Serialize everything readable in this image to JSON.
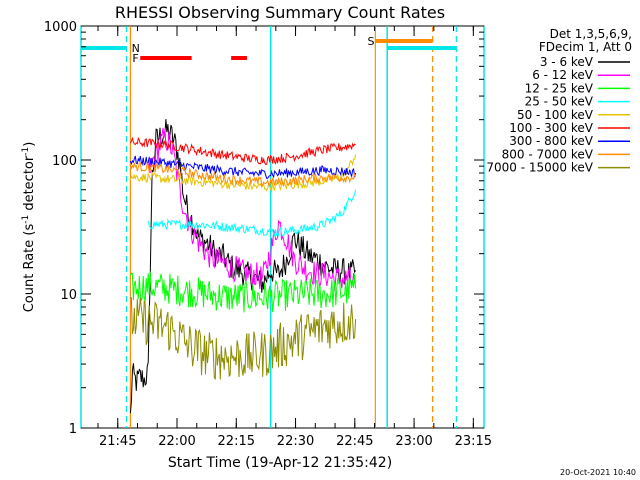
{
  "chart_data": {
    "type": "line",
    "title": "RHESSI Observing Summary Count Rates",
    "xlabel": "Start Time (19-Apr-12 21:35:42)",
    "ylabel_main": "Count Rate (s",
    "ylabel_sup1": "-1",
    "ylabel_mid": " detector",
    "ylabel_sup2": "-1",
    "ylabel_end": ")",
    "y_scale": "log",
    "ylim": [
      1,
      1000
    ],
    "y_ticks": [
      1,
      10,
      100,
      1000
    ],
    "y_tick_labels": [
      "1",
      "10",
      "100",
      "1000"
    ],
    "xlim_minutes": [
      0,
      102
    ],
    "x_ticks": [
      {
        "t": 9.3,
        "label": "21:45"
      },
      {
        "t": 24.3,
        "label": "22:00"
      },
      {
        "t": 39.3,
        "label": "22:15"
      },
      {
        "t": 54.3,
        "label": "22:30"
      },
      {
        "t": 69.3,
        "label": "22:45"
      },
      {
        "t": 84.3,
        "label": "23:00"
      },
      {
        "t": 99.3,
        "label": "23:15"
      }
    ],
    "legend_header": [
      "Det 1,3,5,6,9,",
      "FDecim 1, Att 0"
    ],
    "series": [
      {
        "name": "3 - 6 keV",
        "color": "#000000",
        "t": [
          12.5,
          13,
          14,
          15,
          16,
          17,
          18,
          19,
          20,
          21,
          22,
          23,
          24,
          25,
          26,
          27,
          28,
          30,
          32,
          34,
          36,
          38,
          40,
          42,
          44,
          46,
          48,
          50,
          52,
          54,
          56,
          58,
          60,
          62,
          64,
          66,
          68,
          69.5
        ],
        "values": [
          1.2,
          2.5,
          2.2,
          2.4,
          2.3,
          2.6,
          75,
          140,
          150,
          160,
          165,
          150,
          130,
          95,
          55,
          42,
          36,
          26,
          24,
          20,
          19,
          16,
          15,
          14,
          13,
          12,
          15,
          14,
          18,
          26,
          22,
          19,
          18,
          16,
          15,
          15,
          14,
          15
        ]
      },
      {
        "name": "6 - 12 keV",
        "color": "#ff00ff",
        "t": [
          17,
          18,
          19,
          20,
          21,
          22,
          23,
          24,
          25,
          26,
          27,
          28,
          30,
          32,
          34,
          36,
          38,
          40,
          42,
          44,
          46,
          48,
          50,
          52,
          54,
          56,
          58,
          60,
          62,
          64,
          66,
          68,
          69.5
        ],
        "values": [
          80,
          95,
          110,
          130,
          145,
          140,
          120,
          90,
          60,
          45,
          36,
          30,
          24,
          20,
          18,
          17,
          16,
          15,
          14,
          14,
          13,
          21,
          34,
          26,
          18,
          16,
          15,
          14,
          14,
          13,
          13,
          13,
          12
        ]
      },
      {
        "name": "12 - 25 keV",
        "color": "#00ff00",
        "t": [
          12.5,
          17,
          22,
          27,
          32,
          37,
          42,
          47,
          52,
          57,
          62,
          67,
          69.5
        ],
        "values": [
          11,
          11.5,
          11,
          10.5,
          10,
          9.5,
          9.5,
          9.5,
          9.8,
          10,
          10,
          10.5,
          11
        ]
      },
      {
        "name": "25 - 50 keV",
        "color": "#00ffff",
        "t": [
          17,
          20,
          25,
          30,
          35,
          40,
          45,
          50,
          55,
          60,
          63,
          66,
          68,
          69.5
        ],
        "values": [
          33,
          33,
          33,
          33,
          32,
          31,
          30,
          29,
          30,
          32,
          35,
          40,
          50,
          60
        ]
      },
      {
        "name": "50 - 100 keV",
        "color": "#e6c300",
        "t": [
          12.5,
          17,
          22,
          27,
          32,
          37,
          42,
          47,
          52,
          57,
          62,
          66,
          68,
          69.5
        ],
        "values": [
          75,
          74,
          72,
          70,
          68,
          66,
          64,
          63,
          65,
          67,
          70,
          75,
          90,
          110
        ]
      },
      {
        "name": "100 - 300 keV",
        "color": "#ff0000",
        "t": [
          12.5,
          17,
          22,
          27,
          32,
          37,
          42,
          47,
          52,
          57,
          62,
          67,
          69.5
        ],
        "values": [
          135,
          134,
          130,
          122,
          114,
          108,
          103,
          100,
          104,
          112,
          120,
          126,
          130
        ]
      },
      {
        "name": "300 - 800 keV",
        "color": "#0000ff",
        "t": [
          12.5,
          17,
          22,
          27,
          32,
          37,
          42,
          47,
          52,
          57,
          62,
          67,
          69.5
        ],
        "values": [
          100,
          98,
          95,
          90,
          86,
          83,
          80,
          79,
          80,
          82,
          84,
          82,
          80
        ]
      },
      {
        "name": "800 - 7000 keV",
        "color": "#ff8c00",
        "t": [
          12.5,
          17,
          22,
          27,
          32,
          37,
          42,
          47,
          52,
          57,
          62,
          67,
          69.5
        ],
        "values": [
          90,
          88,
          85,
          80,
          76,
          72,
          70,
          68,
          69,
          72,
          74,
          74,
          75
        ]
      },
      {
        "name": "7000 - 15000 keV",
        "color": "#8c8c00",
        "t": [
          12.5,
          17,
          22,
          27,
          32,
          37,
          42,
          47,
          52,
          57,
          62,
          67,
          69.5
        ],
        "values": [
          6.5,
          6.2,
          5.6,
          4.2,
          3.5,
          3.4,
          3.4,
          3.6,
          4.3,
          5.0,
          5.8,
          6.2,
          6.5
        ]
      }
    ],
    "annotations": {
      "night_solid_t": [
        0,
        48,
        77.5,
        102
      ],
      "night_dashed_t": [
        95
      ],
      "saa_solid_t": [
        12.5,
        74.5
      ],
      "saa_dashed_t": [
        89
      ],
      "night_bars": [
        {
          "t0": 0,
          "t1": 11.5,
          "label": "N",
          "label_t": 12.8
        },
        {
          "t0": 77.5,
          "t1": 95,
          "label": "",
          "label_t": 0
        }
      ],
      "saa_bar": {
        "t0": 74.5,
        "t1": 89,
        "label": "S",
        "label_t": 72.5
      },
      "flare_bars": [
        {
          "t0": 15,
          "t1": 28
        },
        {
          "t0": 38,
          "t1": 42
        }
      ],
      "flare_label": "F",
      "flare_label_t": 13
    },
    "footer_timestamp": "20-Oct-2021 10:40"
  }
}
